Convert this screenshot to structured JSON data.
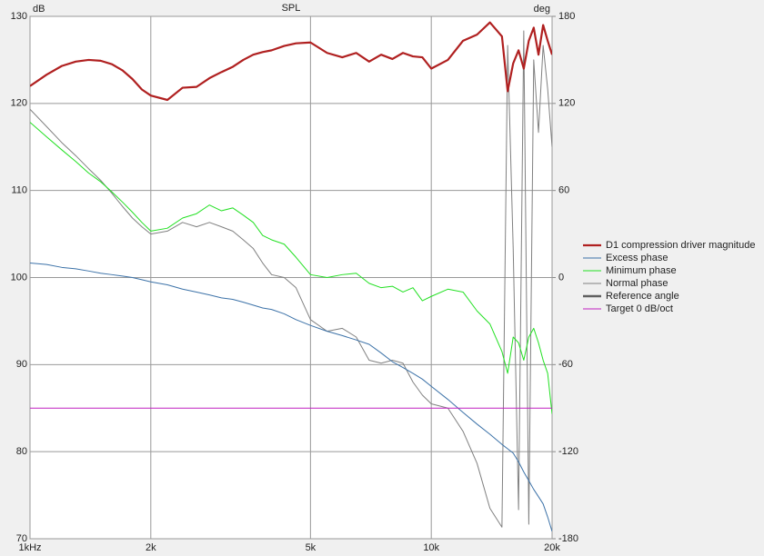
{
  "chart_data": {
    "type": "line",
    "title": "SPL",
    "ylabel": "dB",
    "y2label": "deg",
    "xscale": "log",
    "xlim": [
      1000,
      20000
    ],
    "xticks": [
      {
        "value": 1000,
        "label": "1kHz"
      },
      {
        "value": 2000,
        "label": "2k"
      },
      {
        "value": 5000,
        "label": "5k"
      },
      {
        "value": 10000,
        "label": "10k"
      },
      {
        "value": 20000,
        "label": "20k"
      }
    ],
    "ylim": [
      70,
      130
    ],
    "yticks": [
      70,
      80,
      90,
      100,
      110,
      120,
      130
    ],
    "y2lim": [
      -180,
      180
    ],
    "y2ticks": [
      -180,
      -120,
      -60,
      0,
      60,
      120,
      180
    ],
    "grid": true,
    "legend": "right",
    "x": [
      1000,
      1100,
      1200,
      1300,
      1400,
      1500,
      1600,
      1700,
      1800,
      1900,
      2000,
      2200,
      2400,
      2600,
      2800,
      3000,
      3200,
      3400,
      3600,
      3800,
      4000,
      4300,
      4600,
      5000,
      5500,
      6000,
      6500,
      7000,
      7500,
      8000,
      8500,
      9000,
      9500,
      10000,
      11000,
      12000,
      13000,
      14000,
      15000,
      15500,
      16000,
      16500,
      17000,
      17500,
      18000,
      18500,
      19000,
      19500,
      20000
    ],
    "series": [
      {
        "name": "D1 compression driver magnitude",
        "color": "#b02020",
        "width": 2.2,
        "values": [
          122,
          123.3,
          124.3,
          124.8,
          125,
          124.9,
          124.5,
          123.8,
          122.8,
          121.6,
          120.9,
          120.4,
          121.8,
          121.9,
          122.9,
          123.6,
          124.2,
          125.0,
          125.6,
          125.9,
          126.1,
          126.6,
          126.9,
          127.0,
          125.8,
          125.3,
          125.8,
          124.8,
          125.6,
          125.1,
          125.8,
          125.4,
          125.3,
          124.0,
          125.0,
          127.2,
          127.9,
          129.3,
          127.7,
          121.4,
          124.6,
          126.1,
          124.0,
          127.2,
          128.7,
          125.6,
          129.0,
          127.2,
          125.6
        ]
      },
      {
        "name": "Excess phase",
        "color": "#3c72a8",
        "width": 1,
        "axis": "y2",
        "values": [
          10,
          9,
          7,
          6,
          4.5,
          3,
          2,
          1,
          0,
          -1.5,
          -3,
          -5,
          -8,
          -10,
          -12,
          -14,
          -15,
          -17,
          -19,
          -21,
          -22,
          -25,
          -29,
          -33,
          -37,
          -40,
          -43,
          -46,
          -52,
          -58,
          -62,
          -66,
          -70,
          -75,
          -84,
          -93,
          -101,
          -108,
          -115,
          -118,
          -121,
          -127,
          -134,
          -140,
          -146,
          -151,
          -156,
          -165,
          -175
        ]
      },
      {
        "name": "Minimum phase",
        "color": "#22e022",
        "width": 1,
        "axis": "y2",
        "values": [
          107,
          97,
          88,
          80,
          72,
          66,
          59,
          52,
          45,
          38,
          32,
          34,
          41,
          44,
          50,
          46,
          48,
          43,
          38,
          29,
          26,
          23,
          14,
          2,
          0,
          2,
          3,
          -4,
          -7,
          -6,
          -10,
          -7,
          -16,
          -13,
          -8,
          -10,
          -23,
          -32,
          -51,
          -66,
          -41,
          -45,
          -57,
          -41,
          -35,
          -45,
          -57,
          -66,
          -94
        ]
      },
      {
        "name": "Normal phase",
        "color": "#808080",
        "width": 1,
        "axis": "y2",
        "values": [
          116,
          104,
          93,
          84,
          75,
          67,
          58,
          49,
          41,
          35,
          30,
          32,
          38,
          35,
          38,
          35,
          32,
          26,
          20,
          10,
          2,
          0,
          -7,
          -29,
          -37,
          -35,
          -41,
          -57,
          -59,
          -57,
          -59,
          -72,
          -81,
          -87,
          -90,
          -106,
          -128,
          -159,
          -172,
          160,
          20,
          -160,
          170,
          -170,
          150,
          100,
          160,
          130,
          90
        ]
      },
      {
        "name": "Reference angle",
        "color": "#606060",
        "width": 2.5,
        "axis": "y2"
      },
      {
        "name": "Target 0 dB/oct",
        "color": "#c020c0",
        "width": 1,
        "values": [
          85,
          85,
          85,
          85,
          85,
          85,
          85,
          85,
          85,
          85,
          85,
          85,
          85,
          85,
          85,
          85,
          85,
          85,
          85,
          85,
          85,
          85,
          85,
          85,
          85,
          85,
          85,
          85,
          85,
          85,
          85,
          85,
          85,
          85,
          85,
          85,
          85,
          85,
          85,
          85,
          85,
          85,
          85,
          85,
          85,
          85,
          85,
          85,
          85
        ]
      }
    ]
  }
}
